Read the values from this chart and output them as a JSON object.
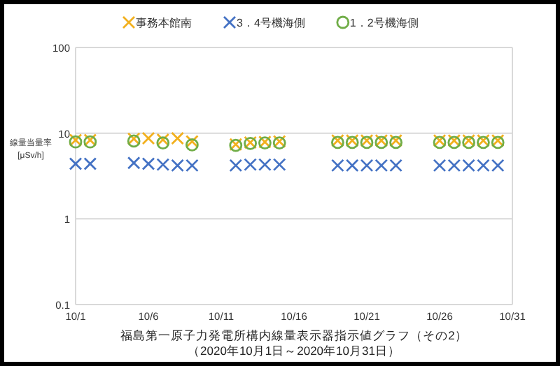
{
  "chart_data": {
    "type": "scatter",
    "title": "福島第一原子力発電所構内線量表示器指示値グラフ（その2）",
    "subtitle": "（2020年10月1日～2020年10月31日）",
    "ylabel": "線量当量率 [μSv/h]",
    "x": [
      "2020-10-01",
      "2020-10-02",
      "2020-10-05",
      "2020-10-06",
      "2020-10-07",
      "2020-10-08",
      "2020-10-09",
      "2020-10-12",
      "2020-10-13",
      "2020-10-14",
      "2020-10-15",
      "2020-10-19",
      "2020-10-20",
      "2020-10-21",
      "2020-10-22",
      "2020-10-23",
      "2020-10-26",
      "2020-10-27",
      "2020-10-28",
      "2020-10-29",
      "2020-10-30"
    ],
    "series": [
      {
        "name": "事務本館南",
        "color": "#f2b01e",
        "marker": "cross",
        "values": [
          8.3,
          8.3,
          8.6,
          8.7,
          8.4,
          8.7,
          8.0,
          7.4,
          7.8,
          7.9,
          8.0,
          8.2,
          8.2,
          8.2,
          8.2,
          8.2,
          8.2,
          8.2,
          8.2,
          8.2,
          8.2
        ]
      },
      {
        "name": "3．4号機海側",
        "color": "#4472c4",
        "marker": "cross",
        "values": [
          4.4,
          4.4,
          4.5,
          4.4,
          4.3,
          4.2,
          4.2,
          4.2,
          4.3,
          4.3,
          4.3,
          4.2,
          4.2,
          4.2,
          4.2,
          4.2,
          4.2,
          4.2,
          4.2,
          4.2,
          4.2
        ]
      },
      {
        "name": "1．2号機海側",
        "color": "#70ad47",
        "marker": "circle",
        "values": [
          7.9,
          7.9,
          8.1,
          null,
          7.7,
          null,
          7.3,
          7.2,
          7.6,
          7.7,
          7.7,
          7.8,
          7.8,
          7.8,
          7.8,
          7.8,
          7.8,
          7.8,
          7.8,
          7.8,
          7.8
        ]
      }
    ],
    "log": true,
    "ylim": [
      0.1,
      100
    ],
    "yticks": [
      0.1,
      1,
      10,
      100
    ],
    "xlim": [
      "2020-10-01",
      "2020-10-31"
    ],
    "xticks": [
      {
        "value": "2020-10-01",
        "label": "10/1"
      },
      {
        "value": "2020-10-06",
        "label": "10/6"
      },
      {
        "value": "2020-10-11",
        "label": "10/11"
      },
      {
        "value": "2020-10-16",
        "label": "10/16"
      },
      {
        "value": "2020-10-21",
        "label": "10/21"
      },
      {
        "value": "2020-10-26",
        "label": "10/26"
      },
      {
        "value": "2020-10-31",
        "label": "10/31"
      }
    ],
    "grid": "y",
    "legend": "top"
  }
}
